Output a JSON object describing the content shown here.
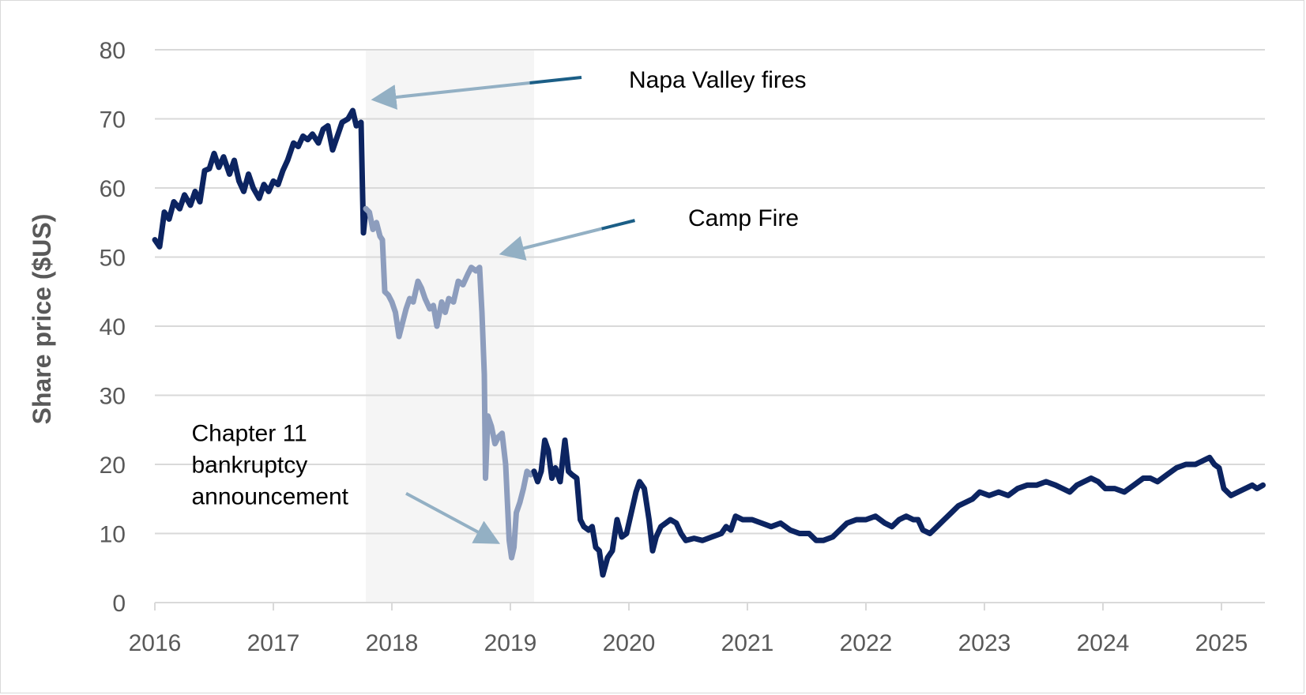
{
  "chart_data": {
    "type": "line",
    "title": "",
    "xlabel": "",
    "ylabel": "Share price ($US)",
    "ylim": [
      0,
      80
    ],
    "xlim": [
      2016.0,
      2025.35
    ],
    "y_ticks": [
      0,
      10,
      20,
      30,
      40,
      50,
      60,
      70,
      80
    ],
    "x_ticks": [
      "2016",
      "2017",
      "2018",
      "2019",
      "2020",
      "2021",
      "2022",
      "2023",
      "2024",
      "2025"
    ],
    "grid": "horizontal",
    "legend": "none",
    "shaded_period": [
      2017.78,
      2019.2
    ],
    "colors": {
      "main_line": "#0c2461",
      "highlight_line": "#8d9dbd",
      "shade": "#f5f5f5",
      "grid": "#d9d9d9",
      "arrow_light": "#93b0c4",
      "arrow_dark": "#1b5e86"
    },
    "series": [
      {
        "role": "main",
        "points": [
          [
            2016.0,
            52.5
          ],
          [
            2016.04,
            51.5
          ],
          [
            2016.08,
            56.5
          ],
          [
            2016.12,
            55.5
          ],
          [
            2016.16,
            58.0
          ],
          [
            2016.21,
            57.0
          ],
          [
            2016.25,
            59.0
          ],
          [
            2016.3,
            57.5
          ],
          [
            2016.34,
            59.5
          ],
          [
            2016.38,
            58.0
          ],
          [
            2016.42,
            62.5
          ],
          [
            2016.46,
            62.8
          ],
          [
            2016.5,
            65.0
          ],
          [
            2016.54,
            63.0
          ],
          [
            2016.58,
            64.5
          ],
          [
            2016.63,
            62.0
          ],
          [
            2016.67,
            64.0
          ],
          [
            2016.71,
            61.0
          ],
          [
            2016.75,
            59.5
          ],
          [
            2016.79,
            62.0
          ],
          [
            2016.83,
            60.0
          ],
          [
            2016.88,
            58.5
          ],
          [
            2016.92,
            60.5
          ],
          [
            2016.96,
            59.5
          ],
          [
            2017.0,
            61.0
          ],
          [
            2017.04,
            60.5
          ],
          [
            2017.08,
            62.5
          ],
          [
            2017.12,
            64.0
          ],
          [
            2017.17,
            66.5
          ],
          [
            2017.21,
            66.0
          ],
          [
            2017.25,
            67.5
          ],
          [
            2017.29,
            67.0
          ],
          [
            2017.33,
            67.8
          ],
          [
            2017.38,
            66.5
          ],
          [
            2017.42,
            68.5
          ],
          [
            2017.46,
            69.0
          ],
          [
            2017.5,
            65.5
          ],
          [
            2017.54,
            67.5
          ],
          [
            2017.58,
            69.5
          ],
          [
            2017.63,
            70.0
          ],
          [
            2017.67,
            71.2
          ],
          [
            2017.7,
            69.0
          ],
          [
            2017.74,
            69.5
          ],
          [
            2017.76,
            53.5
          ],
          [
            2017.78,
            57.0
          ]
        ]
      },
      {
        "role": "highlight",
        "points": [
          [
            2017.78,
            57.0
          ],
          [
            2017.81,
            56.5
          ],
          [
            2017.84,
            54.0
          ],
          [
            2017.87,
            55.0
          ],
          [
            2017.9,
            53.0
          ],
          [
            2017.92,
            52.5
          ],
          [
            2017.94,
            45.0
          ],
          [
            2017.97,
            44.5
          ],
          [
            2018.0,
            43.5
          ],
          [
            2018.03,
            42.0
          ],
          [
            2018.06,
            38.5
          ],
          [
            2018.09,
            40.5
          ],
          [
            2018.12,
            42.5
          ],
          [
            2018.15,
            44.0
          ],
          [
            2018.18,
            43.5
          ],
          [
            2018.22,
            46.5
          ],
          [
            2018.25,
            45.5
          ],
          [
            2018.28,
            44.0
          ],
          [
            2018.32,
            42.5
          ],
          [
            2018.35,
            43.0
          ],
          [
            2018.38,
            40.0
          ],
          [
            2018.42,
            43.5
          ],
          [
            2018.45,
            42.0
          ],
          [
            2018.48,
            44.0
          ],
          [
            2018.52,
            43.5
          ],
          [
            2018.56,
            46.5
          ],
          [
            2018.6,
            46.0
          ],
          [
            2018.64,
            47.5
          ],
          [
            2018.67,
            48.5
          ],
          [
            2018.71,
            48.0
          ],
          [
            2018.74,
            48.5
          ],
          [
            2018.76,
            42.0
          ],
          [
            2018.78,
            33.0
          ],
          [
            2018.79,
            18.0
          ],
          [
            2018.81,
            27.0
          ],
          [
            2018.84,
            25.5
          ],
          [
            2018.87,
            23.0
          ],
          [
            2018.9,
            24.0
          ],
          [
            2018.93,
            24.5
          ],
          [
            2018.96,
            20.0
          ],
          [
            2018.99,
            9.0
          ],
          [
            2019.01,
            6.5
          ],
          [
            2019.03,
            8.0
          ],
          [
            2019.05,
            13.0
          ],
          [
            2019.08,
            14.5
          ],
          [
            2019.11,
            16.5
          ],
          [
            2019.14,
            19.0
          ],
          [
            2019.17,
            18.5
          ],
          [
            2019.2,
            19.0
          ]
        ]
      },
      {
        "role": "main",
        "points": [
          [
            2019.2,
            19.0
          ],
          [
            2019.23,
            17.5
          ],
          [
            2019.26,
            19.0
          ],
          [
            2019.29,
            23.5
          ],
          [
            2019.32,
            22.0
          ],
          [
            2019.35,
            18.0
          ],
          [
            2019.38,
            19.5
          ],
          [
            2019.42,
            17.5
          ],
          [
            2019.46,
            23.5
          ],
          [
            2019.49,
            19.0
          ],
          [
            2019.52,
            18.5
          ],
          [
            2019.56,
            18.0
          ],
          [
            2019.59,
            12.0
          ],
          [
            2019.62,
            11.0
          ],
          [
            2019.66,
            10.5
          ],
          [
            2019.69,
            11.0
          ],
          [
            2019.72,
            8.0
          ],
          [
            2019.75,
            7.5
          ],
          [
            2019.78,
            4.0
          ],
          [
            2019.82,
            6.5
          ],
          [
            2019.86,
            7.5
          ],
          [
            2019.9,
            12.0
          ],
          [
            2019.94,
            9.5
          ],
          [
            2019.98,
            10.0
          ],
          [
            2020.02,
            13.0
          ],
          [
            2020.06,
            16.0
          ],
          [
            2020.09,
            17.5
          ],
          [
            2020.13,
            16.5
          ],
          [
            2020.17,
            12.0
          ],
          [
            2020.2,
            7.5
          ],
          [
            2020.23,
            9.5
          ],
          [
            2020.27,
            11.0
          ],
          [
            2020.31,
            11.5
          ],
          [
            2020.35,
            12.0
          ],
          [
            2020.4,
            11.5
          ],
          [
            2020.44,
            10.0
          ],
          [
            2020.48,
            9.0
          ],
          [
            2020.55,
            9.3
          ],
          [
            2020.62,
            9.0
          ],
          [
            2020.7,
            9.5
          ],
          [
            2020.78,
            10.0
          ],
          [
            2020.82,
            11.0
          ],
          [
            2020.86,
            10.5
          ],
          [
            2020.9,
            12.5
          ],
          [
            2020.96,
            12.0
          ],
          [
            2021.04,
            12.0
          ],
          [
            2021.12,
            11.5
          ],
          [
            2021.2,
            11.0
          ],
          [
            2021.28,
            11.5
          ],
          [
            2021.36,
            10.5
          ],
          [
            2021.44,
            10.0
          ],
          [
            2021.52,
            10.0
          ],
          [
            2021.58,
            9.0
          ],
          [
            2021.64,
            9.0
          ],
          [
            2021.72,
            9.5
          ],
          [
            2021.78,
            10.5
          ],
          [
            2021.84,
            11.5
          ],
          [
            2021.92,
            12.0
          ],
          [
            2022.0,
            12.0
          ],
          [
            2022.08,
            12.5
          ],
          [
            2022.16,
            11.5
          ],
          [
            2022.22,
            11.0
          ],
          [
            2022.28,
            12.0
          ],
          [
            2022.34,
            12.5
          ],
          [
            2022.4,
            12.0
          ],
          [
            2022.44,
            12.0
          ],
          [
            2022.48,
            10.5
          ],
          [
            2022.54,
            10.0
          ],
          [
            2022.6,
            11.0
          ],
          [
            2022.66,
            12.0
          ],
          [
            2022.72,
            13.0
          ],
          [
            2022.78,
            14.0
          ],
          [
            2022.84,
            14.5
          ],
          [
            2022.9,
            15.0
          ],
          [
            2022.96,
            16.0
          ],
          [
            2023.04,
            15.5
          ],
          [
            2023.12,
            16.0
          ],
          [
            2023.2,
            15.5
          ],
          [
            2023.28,
            16.5
          ],
          [
            2023.36,
            17.0
          ],
          [
            2023.44,
            17.0
          ],
          [
            2023.52,
            17.5
          ],
          [
            2023.6,
            17.0
          ],
          [
            2023.66,
            16.5
          ],
          [
            2023.72,
            16.0
          ],
          [
            2023.78,
            17.0
          ],
          [
            2023.84,
            17.5
          ],
          [
            2023.9,
            18.0
          ],
          [
            2023.96,
            17.5
          ],
          [
            2024.02,
            16.5
          ],
          [
            2024.1,
            16.5
          ],
          [
            2024.18,
            16.0
          ],
          [
            2024.26,
            17.0
          ],
          [
            2024.34,
            18.0
          ],
          [
            2024.4,
            18.0
          ],
          [
            2024.46,
            17.5
          ],
          [
            2024.54,
            18.5
          ],
          [
            2024.62,
            19.5
          ],
          [
            2024.7,
            20.0
          ],
          [
            2024.78,
            20.0
          ],
          [
            2024.84,
            20.5
          ],
          [
            2024.9,
            21.0
          ],
          [
            2024.94,
            20.0
          ],
          [
            2024.98,
            19.5
          ],
          [
            2025.02,
            16.5
          ],
          [
            2025.08,
            15.5
          ],
          [
            2025.14,
            16.0
          ],
          [
            2025.2,
            16.5
          ],
          [
            2025.26,
            17.0
          ],
          [
            2025.3,
            16.5
          ],
          [
            2025.35,
            17.0
          ]
        ]
      }
    ],
    "annotations": [
      {
        "text": "Napa Valley fires",
        "text_x": 2020.0,
        "text_y": 74.5,
        "arrow_from": [
          2019.6,
          76.0
        ],
        "arrow_to": [
          2017.85,
          72.8
        ]
      },
      {
        "text": "Camp Fire",
        "text_x": 2020.5,
        "text_y": 54.5,
        "arrow_from": [
          2020.05,
          55.3
        ],
        "arrow_to": [
          2018.93,
          50.5
        ]
      },
      {
        "text_lines": [
          "Chapter 11",
          "bankruptcy",
          "announcement"
        ],
        "text_x": 2016.31,
        "text_y": 23.4,
        "arrow_from": [
          2018.12,
          15.8
        ],
        "arrow_to": [
          2018.89,
          8.7
        ]
      }
    ]
  }
}
